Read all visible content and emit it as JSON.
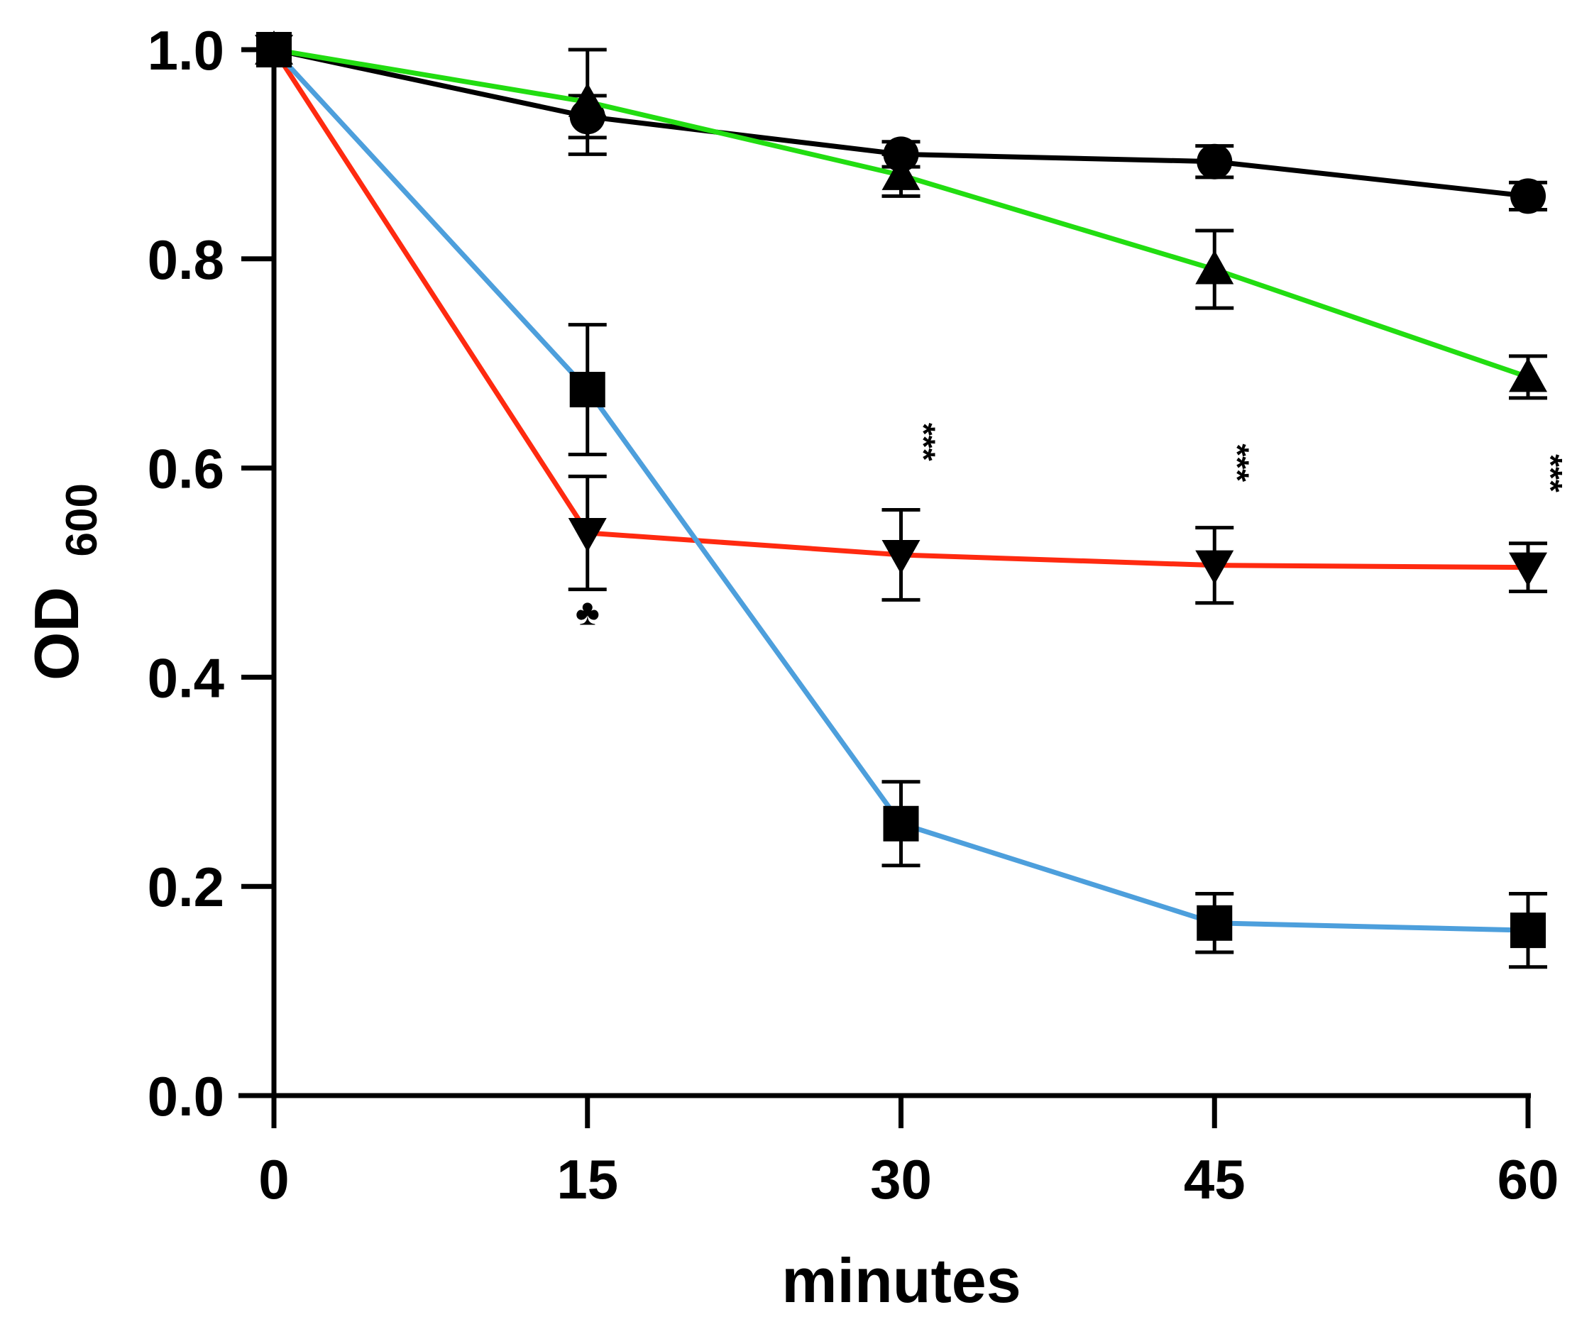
{
  "chart_data": {
    "type": "line",
    "title": "",
    "xlabel": "minutes",
    "ylabel": {
      "main": "OD",
      "subscript": "600"
    },
    "xlim": [
      0,
      60
    ],
    "ylim": [
      0,
      1.0
    ],
    "xticks": [
      0,
      15,
      30,
      45,
      60
    ],
    "yticks": [
      0.0,
      0.2,
      0.4,
      0.6,
      0.8,
      1.0
    ],
    "xtick_labels": [
      "0",
      "15",
      "30",
      "45",
      "60"
    ],
    "ytick_labels": [
      "0.0",
      "0.2",
      "0.4",
      "0.6",
      "0.8",
      "1.0"
    ],
    "grid": false,
    "legend": "none",
    "x": [
      0,
      15,
      30,
      45,
      60
    ],
    "series": [
      {
        "name": "circle series",
        "color": "#000000",
        "marker": "circle",
        "values": [
          1.0,
          0.936,
          0.9,
          0.893,
          0.86
        ],
        "errors": [
          0,
          0.02,
          0.012,
          0.015,
          0.013
        ]
      },
      {
        "name": "triangle-up series",
        "color": "#22dd11",
        "marker": "triangle-up",
        "values": [
          1.0,
          0.95,
          0.88,
          0.79,
          0.687
        ],
        "errors": [
          0,
          0.05,
          0.02,
          0.037,
          0.02
        ]
      },
      {
        "name": "triangle-down series",
        "color": "#ff2a10",
        "marker": "triangle-down",
        "values": [
          1.0,
          0.538,
          0.517,
          0.507,
          0.505
        ],
        "errors": [
          0,
          0.054,
          0.043,
          0.036,
          0.023
        ]
      },
      {
        "name": "square series",
        "color": "#4d9fdc",
        "marker": "square",
        "values": [
          1.0,
          0.675,
          0.26,
          0.165,
          0.158
        ],
        "errors": [
          0,
          0.062,
          0.04,
          0.028,
          0.035
        ]
      }
    ],
    "annotations": [
      {
        "text": "***",
        "x": 30,
        "y": 0.625,
        "kind": "stars"
      },
      {
        "text": "***",
        "x": 45,
        "y": 0.605,
        "kind": "stars"
      },
      {
        "text": "***",
        "x": 60,
        "y": 0.595,
        "kind": "stars"
      },
      {
        "text": "♣",
        "x": 15,
        "y": 0.45,
        "kind": "club"
      }
    ]
  }
}
